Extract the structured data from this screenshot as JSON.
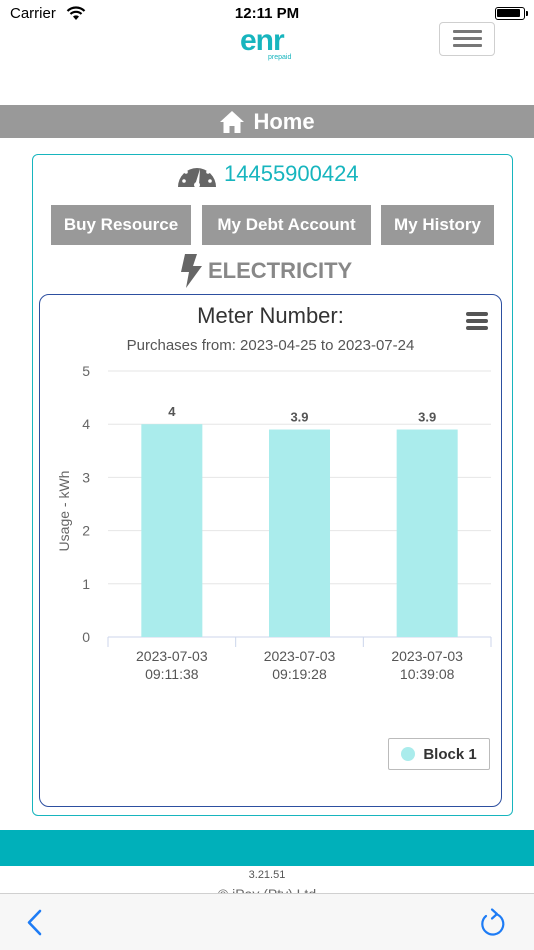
{
  "status_bar": {
    "carrier": "Carrier",
    "time": "12:11 PM"
  },
  "header": {
    "logo_text": "enr",
    "logo_sub": "prepaid"
  },
  "home_bar": {
    "label": "Home"
  },
  "meter": {
    "number": "14455900424"
  },
  "actions": {
    "buy": "Buy Resource",
    "debt": "My Debt Account",
    "history": "My History"
  },
  "section": {
    "label": "ELECTRICITY"
  },
  "chart_data": {
    "type": "bar",
    "title": "Meter Number:",
    "subtitle": "Purchases from: 2023-04-25 to 2023-07-24",
    "ylabel": "Usage - kWh",
    "xlabel": "",
    "ylim": [
      0,
      5
    ],
    "yticks": [
      "0",
      "1",
      "2",
      "3",
      "4",
      "5"
    ],
    "categories": [
      [
        "2023-07-03",
        "09:11:38"
      ],
      [
        "2023-07-03",
        "09:19:28"
      ],
      [
        "2023-07-03",
        "10:39:08"
      ]
    ],
    "series": [
      {
        "name": "Block 1",
        "values": [
          4,
          3.9,
          3.9
        ],
        "labels": [
          "4",
          "3.9",
          "3.9"
        ]
      }
    ],
    "grid": true,
    "legend": "bottom-right"
  },
  "colors": {
    "accent": "#17b5be",
    "bar": "#aaecec",
    "header_gray": "#999999",
    "chart_border": "#2d4fa0"
  },
  "footer": {
    "version": "3.21.51",
    "copyright": "© iPay (Pty) Ltd"
  },
  "icons": {
    "home": "home-icon",
    "gauge": "gauge-icon",
    "lightning": "lightning-icon",
    "back": "back-arrow-icon",
    "refresh": "refresh-icon"
  }
}
